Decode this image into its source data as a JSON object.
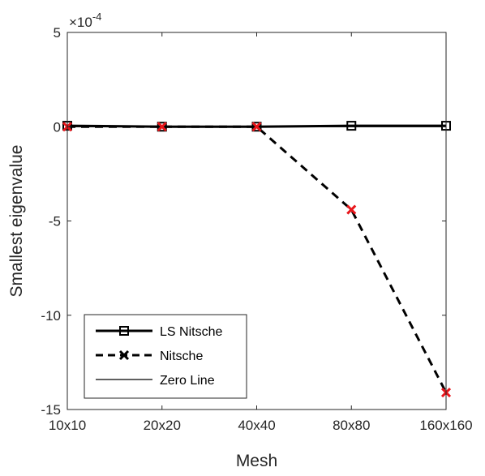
{
  "chart_data": {
    "type": "line",
    "xlabel": "Mesh",
    "ylabel": "Smallest eigenvalue",
    "y_exponent_label": "×10",
    "y_exponent_power": "-4",
    "categories": [
      "10x10",
      "20x20",
      "40x40",
      "80x80",
      "160x160"
    ],
    "ylim": [
      -15,
      5
    ],
    "yticks": [
      5,
      0,
      -5,
      -10,
      -15
    ],
    "ytick_labels": [
      "5",
      "0",
      "-5",
      "-10",
      "-15"
    ],
    "grid": false,
    "legend_position": "bottom-left",
    "series": [
      {
        "name": "LS Nitsche",
        "values": [
          0.05,
          0.0,
          0.0,
          0.05,
          0.05
        ],
        "line_style": "solid",
        "line_color": "#000000",
        "marker": "square",
        "marker_color": "#000000"
      },
      {
        "name": "Nitsche",
        "values": [
          0.0,
          0.0,
          0.0,
          -4.4,
          -14.1
        ],
        "line_style": "dashed",
        "line_color": "#000000",
        "marker": "x",
        "marker_color": "#e8161b",
        "legend_marker_color": "#000000"
      },
      {
        "name": "Zero Line",
        "values": [
          0,
          0,
          0,
          0,
          0
        ],
        "line_style": "solid-thin",
        "line_color": "#000000",
        "marker": "none"
      }
    ]
  }
}
